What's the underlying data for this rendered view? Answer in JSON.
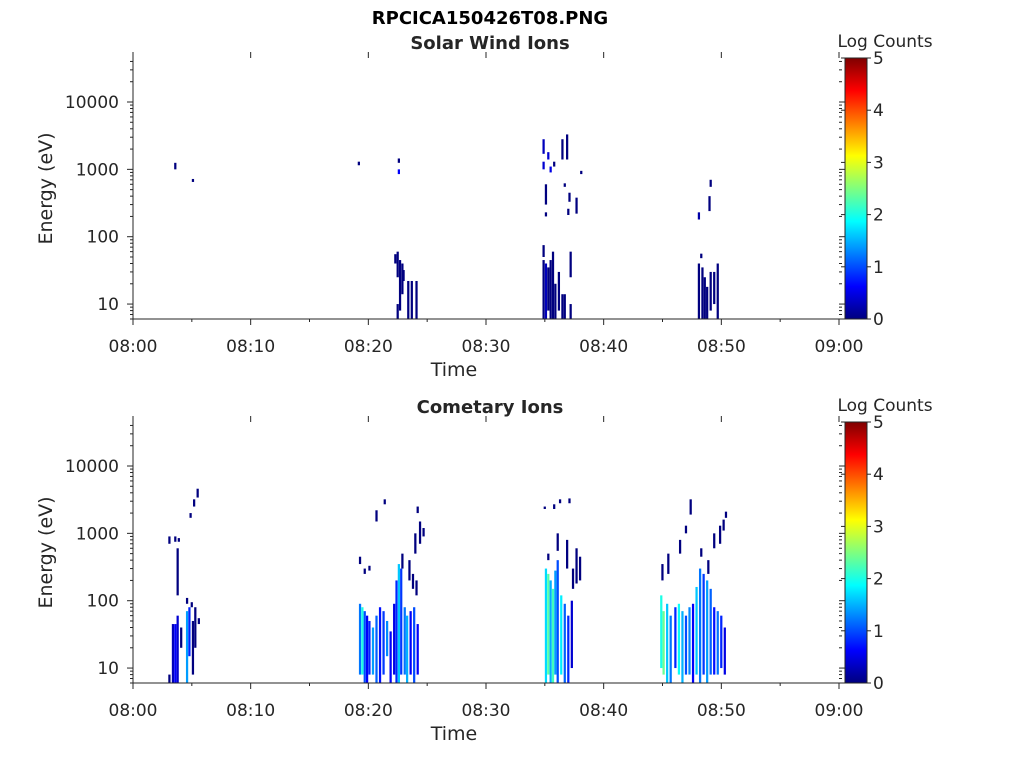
{
  "figure": {
    "title": "RPCICA150426T08.PNG"
  },
  "colormap": {
    "name": "jet",
    "stops": [
      "#00007f",
      "#0000ff",
      "#007fff",
      "#00ffff",
      "#7fff7f",
      "#ffff00",
      "#ff7f00",
      "#ff0000",
      "#7f0000"
    ]
  },
  "chart_data": [
    {
      "type": "heatmap",
      "title": "Solar Wind Ions",
      "xlabel": "Time",
      "ylabel": "Energy (eV)",
      "xlim": [
        0,
        60
      ],
      "xticks": [
        0,
        10,
        20,
        30,
        40,
        50,
        60
      ],
      "xtick_labels": [
        "08:00",
        "08:10",
        "08:20",
        "08:30",
        "08:40",
        "08:50",
        "09:00"
      ],
      "y_scale": "log",
      "ylim": [
        6,
        45000
      ],
      "yticks": [
        10,
        100,
        1000,
        10000
      ],
      "ytick_labels": [
        "10",
        "100",
        "1000",
        "10000"
      ],
      "colorbar": {
        "label": "Log Counts",
        "lim": [
          0,
          5
        ],
        "ticks": [
          0,
          1,
          2,
          3,
          4,
          5
        ],
        "tick_labels": [
          "0",
          "1",
          "2",
          "3",
          "4",
          "5"
        ]
      },
      "cells": [
        [
          3.5,
          1000,
          1250,
          0
        ],
        [
          5.0,
          650,
          720,
          0
        ],
        [
          19.1,
          1150,
          1300,
          0
        ],
        [
          22.5,
          1250,
          1450,
          0
        ],
        [
          22.5,
          850,
          1000,
          0.6
        ],
        [
          22.2,
          40,
          55,
          0
        ],
        [
          22.4,
          25,
          60,
          0
        ],
        [
          22.6,
          8,
          45,
          0
        ],
        [
          22.8,
          14,
          40,
          0
        ],
        [
          22.4,
          6,
          10,
          0
        ],
        [
          22.9,
          22,
          32,
          0
        ],
        [
          23.3,
          6,
          22,
          0
        ],
        [
          23.6,
          6,
          22,
          0
        ],
        [
          24.0,
          6,
          22,
          0
        ],
        [
          34.8,
          1700,
          2800,
          0.3
        ],
        [
          34.8,
          1000,
          1300,
          0.4
        ],
        [
          35.2,
          1400,
          1800,
          0.4
        ],
        [
          35.4,
          900,
          1100,
          0.5
        ],
        [
          35.0,
          300,
          600,
          0
        ],
        [
          35.0,
          200,
          230,
          0
        ],
        [
          35.7,
          1100,
          1300,
          0
        ],
        [
          36.4,
          1400,
          2800,
          0
        ],
        [
          36.8,
          1400,
          3300,
          0
        ],
        [
          36.6,
          550,
          620,
          0
        ],
        [
          37.0,
          330,
          450,
          0
        ],
        [
          37.6,
          220,
          380,
          0
        ],
        [
          38.0,
          850,
          950,
          0
        ],
        [
          36.9,
          210,
          260,
          0
        ],
        [
          34.8,
          50,
          75,
          0
        ],
        [
          34.8,
          6,
          45,
          0
        ],
        [
          35.0,
          6,
          40,
          0.3
        ],
        [
          35.2,
          8,
          35,
          0
        ],
        [
          35.4,
          6,
          45,
          0
        ],
        [
          35.6,
          6,
          60,
          0
        ],
        [
          35.8,
          6,
          20,
          0
        ],
        [
          36.1,
          8,
          30,
          0
        ],
        [
          36.4,
          6,
          14,
          0
        ],
        [
          36.6,
          6,
          14,
          0
        ],
        [
          37.1,
          25,
          60,
          0
        ],
        [
          37.1,
          6,
          10,
          0
        ],
        [
          48.0,
          180,
          230,
          0.2
        ],
        [
          48.9,
          240,
          400,
          0
        ],
        [
          49.0,
          550,
          700,
          0
        ],
        [
          48.2,
          48,
          56,
          0
        ],
        [
          48.0,
          6,
          40,
          0
        ],
        [
          48.3,
          6,
          35,
          0
        ],
        [
          48.5,
          6,
          25,
          0
        ],
        [
          48.7,
          6,
          18,
          0
        ],
        [
          49.0,
          8,
          30,
          0
        ],
        [
          49.3,
          10,
          30,
          0
        ],
        [
          49.6,
          6,
          40,
          0
        ]
      ]
    },
    {
      "type": "heatmap",
      "title": "Cometary Ions",
      "xlabel": "Time",
      "ylabel": "Energy (eV)",
      "xlim": [
        0,
        60
      ],
      "xticks": [
        0,
        10,
        20,
        30,
        40,
        50,
        60
      ],
      "xtick_labels": [
        "08:00",
        "08:10",
        "08:20",
        "08:30",
        "08:40",
        "08:50",
        "09:00"
      ],
      "y_scale": "log",
      "ylim": [
        6,
        45000
      ],
      "yticks": [
        10,
        100,
        1000,
        10000
      ],
      "ytick_labels": [
        "10",
        "100",
        "1000",
        "10000"
      ],
      "colorbar": {
        "label": "Log Counts",
        "lim": [
          0,
          5
        ],
        "ticks": [
          0,
          1,
          2,
          3,
          4,
          5
        ],
        "tick_labels": [
          "0",
          "1",
          "2",
          "3",
          "4",
          "5"
        ]
      },
      "cells": [
        [
          5.4,
          3400,
          4600,
          0
        ],
        [
          5.1,
          2500,
          3200,
          0
        ],
        [
          4.8,
          1700,
          2000,
          0
        ],
        [
          3.0,
          700,
          900,
          0
        ],
        [
          3.5,
          750,
          900,
          0
        ],
        [
          3.8,
          750,
          850,
          0
        ],
        [
          3.7,
          120,
          600,
          0
        ],
        [
          3.0,
          6,
          8,
          0
        ],
        [
          3.3,
          6,
          45,
          0.3
        ],
        [
          3.5,
          6,
          45,
          0.6
        ],
        [
          3.7,
          6,
          60,
          0.4
        ],
        [
          4.0,
          20,
          40,
          0
        ],
        [
          4.5,
          6,
          70,
          1.4
        ],
        [
          4.7,
          15,
          80,
          0.8
        ],
        [
          5.0,
          8,
          50,
          0
        ],
        [
          5.2,
          20,
          80,
          0
        ],
        [
          5.5,
          45,
          55,
          0
        ],
        [
          4.5,
          90,
          110,
          0
        ],
        [
          4.9,
          80,
          95,
          0
        ],
        [
          19.2,
          8,
          90,
          1.2
        ],
        [
          19.4,
          8,
          80,
          2.0
        ],
        [
          19.6,
          6,
          70,
          1.0
        ],
        [
          19.8,
          6,
          60,
          0.6
        ],
        [
          20.0,
          8,
          50,
          0.8
        ],
        [
          20.3,
          8,
          40,
          1.4
        ],
        [
          20.6,
          6,
          60,
          1.1
        ],
        [
          20.9,
          6,
          80,
          0.7
        ],
        [
          21.2,
          8,
          70,
          0.9
        ],
        [
          21.5,
          15,
          50,
          1.3
        ],
        [
          21.8,
          6,
          35,
          0.6
        ],
        [
          19.2,
          350,
          450,
          0
        ],
        [
          19.6,
          250,
          300,
          0
        ],
        [
          20.0,
          280,
          330,
          0
        ],
        [
          20.6,
          1500,
          2200,
          0
        ],
        [
          21.3,
          2700,
          3200,
          0
        ],
        [
          22.1,
          8,
          90,
          0.5
        ],
        [
          22.3,
          6,
          200,
          0.8
        ],
        [
          22.5,
          6,
          350,
          1.6
        ],
        [
          22.7,
          8,
          300,
          0.9
        ],
        [
          23.0,
          8,
          80,
          1.2
        ],
        [
          23.2,
          6,
          60,
          1.5
        ],
        [
          23.5,
          8,
          70,
          0.6
        ],
        [
          23.8,
          6,
          80,
          1.0
        ],
        [
          24.1,
          8,
          45,
          0.6
        ],
        [
          22.8,
          300,
          500,
          0
        ],
        [
          23.4,
          200,
          400,
          0
        ],
        [
          23.9,
          500,
          1000,
          0
        ],
        [
          24.3,
          700,
          1500,
          0
        ],
        [
          24.6,
          900,
          1200,
          0
        ],
        [
          24.1,
          2000,
          2500,
          0
        ],
        [
          23.7,
          150,
          250,
          0
        ],
        [
          24.0,
          120,
          200,
          0
        ],
        [
          35.0,
          6,
          300,
          1.7
        ],
        [
          35.2,
          8,
          250,
          2.3
        ],
        [
          35.4,
          6,
          200,
          1.5
        ],
        [
          35.6,
          6,
          150,
          2.2
        ],
        [
          35.8,
          8,
          280,
          1.4
        ],
        [
          36.0,
          6,
          400,
          1.0
        ],
        [
          36.3,
          8,
          120,
          1.8
        ],
        [
          36.6,
          6,
          90,
          1.1
        ],
        [
          36.9,
          6,
          60,
          0.8
        ],
        [
          37.2,
          10,
          100,
          0.4
        ],
        [
          34.9,
          2300,
          2500,
          0
        ],
        [
          35.7,
          2300,
          2700,
          0
        ],
        [
          36.2,
          2800,
          3200,
          0
        ],
        [
          37.0,
          2800,
          3300,
          0
        ],
        [
          35.2,
          400,
          500,
          0
        ],
        [
          36.0,
          550,
          1000,
          0
        ],
        [
          36.8,
          300,
          800,
          0
        ],
        [
          37.3,
          150,
          300,
          0
        ],
        [
          37.6,
          180,
          600,
          0
        ],
        [
          37.9,
          200,
          450,
          0
        ],
        [
          44.8,
          10,
          120,
          2.0
        ],
        [
          45.0,
          8,
          70,
          2.4
        ],
        [
          45.3,
          6,
          90,
          1.6
        ],
        [
          45.6,
          6,
          60,
          1.2
        ],
        [
          46.0,
          10,
          80,
          0.8
        ],
        [
          46.3,
          8,
          90,
          1.9
        ],
        [
          46.6,
          6,
          70,
          1.5
        ],
        [
          46.9,
          8,
          60,
          1.0
        ],
        [
          47.2,
          8,
          80,
          1.3
        ],
        [
          47.5,
          6,
          90,
          0.6
        ],
        [
          44.9,
          200,
          350,
          0
        ],
        [
          45.4,
          250,
          500,
          0
        ],
        [
          46.4,
          500,
          800,
          0
        ],
        [
          46.9,
          1000,
          1300,
          0
        ],
        [
          47.3,
          1900,
          3200,
          0
        ],
        [
          47.8,
          8,
          160,
          1.6
        ],
        [
          48.1,
          6,
          300,
          1.2
        ],
        [
          48.4,
          8,
          250,
          0.9
        ],
        [
          48.7,
          6,
          200,
          1.4
        ],
        [
          49.0,
          8,
          150,
          1.1
        ],
        [
          49.3,
          8,
          80,
          0.7
        ],
        [
          49.6,
          8,
          70,
          1.2
        ],
        [
          49.9,
          10,
          60,
          0.8
        ],
        [
          50.2,
          8,
          40,
          0.5
        ],
        [
          48.2,
          450,
          600,
          0
        ],
        [
          48.8,
          250,
          400,
          0
        ],
        [
          49.3,
          600,
          1000,
          0
        ],
        [
          49.8,
          700,
          1300,
          0
        ],
        [
          50.1,
          1100,
          1600,
          0
        ],
        [
          50.3,
          1700,
          2100,
          0
        ]
      ]
    }
  ]
}
